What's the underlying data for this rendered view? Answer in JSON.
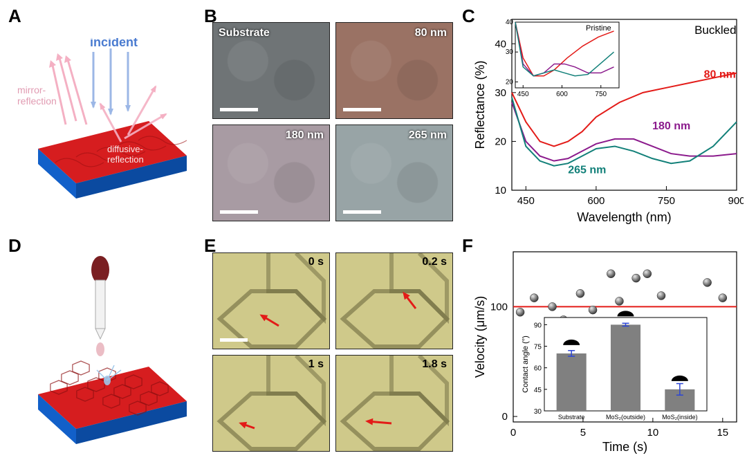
{
  "panels": {
    "A": {
      "label": "A"
    },
    "B": {
      "label": "B"
    },
    "C": {
      "label": "C"
    },
    "D": {
      "label": "D"
    },
    "E": {
      "label": "E"
    },
    "F": {
      "label": "F"
    }
  },
  "panelA": {
    "text_incident": "incident",
    "text_mirror": "mirror-\nreflection",
    "text_diffuse": "diffusive-\nreflection",
    "surface_color": "#d61d1f",
    "side_color_front": "#1260c9",
    "side_color_right": "#0b4aa0",
    "incident_color": "#9cb7e6",
    "mirror_color": "#f4b0c3",
    "diffuse_color": "#f4b0c3",
    "label_color_incident": "#4a7bd0",
    "label_color_mirror": "#e19bb2",
    "label_color_diffuse": "#f2d7de"
  },
  "panelB": {
    "tiles": [
      {
        "label": "Substrate",
        "bg": "#6f7476",
        "tint": "#6f7476"
      },
      {
        "label": "80 nm",
        "bg": "#9a7264",
        "tint": "#9a7264"
      },
      {
        "label": "180 nm",
        "bg": "#a89ba3",
        "tint": "#a89ba3"
      },
      {
        "label": "265 nm",
        "bg": "#98a4a6",
        "tint": "#98a4a6"
      }
    ],
    "scalebar_color": "#ffffff"
  },
  "panelC": {
    "type": "line",
    "title_buckled": "Buckled",
    "title_pristine": "Pristine",
    "xlabel": "Wavelength (nm)",
    "ylabel": "Reflectance (%)",
    "xlim": [
      420,
      900
    ],
    "xticks": [
      450,
      600,
      750,
      900
    ],
    "ylim": [
      10,
      45
    ],
    "yticks": [
      10,
      20,
      30,
      40
    ],
    "axis_color": "#000",
    "axis_w": 1.2,
    "bg": "#ffffff",
    "font_size": 14,
    "series": [
      {
        "name": "80 nm",
        "color": "#e31b18",
        "width": 2,
        "data": [
          [
            420,
            30
          ],
          [
            450,
            24
          ],
          [
            480,
            20
          ],
          [
            510,
            19
          ],
          [
            540,
            20
          ],
          [
            570,
            22
          ],
          [
            600,
            25
          ],
          [
            650,
            28
          ],
          [
            700,
            30
          ],
          [
            750,
            31
          ],
          [
            800,
            32
          ],
          [
            850,
            33
          ],
          [
            900,
            34
          ]
        ]
      },
      {
        "name": "180 nm",
        "color": "#8b1a8c",
        "width": 2,
        "data": [
          [
            420,
            28
          ],
          [
            450,
            20
          ],
          [
            480,
            17
          ],
          [
            510,
            16
          ],
          [
            540,
            16.5
          ],
          [
            570,
            18
          ],
          [
            600,
            19.5
          ],
          [
            640,
            20.5
          ],
          [
            680,
            20.5
          ],
          [
            720,
            19
          ],
          [
            760,
            17.5
          ],
          [
            800,
            17
          ],
          [
            850,
            17
          ],
          [
            900,
            17.5
          ]
        ]
      },
      {
        "name": "265 nm",
        "color": "#128079",
        "width": 2,
        "data": [
          [
            420,
            29
          ],
          [
            450,
            19
          ],
          [
            480,
            16
          ],
          [
            510,
            15
          ],
          [
            540,
            15.5
          ],
          [
            570,
            17
          ],
          [
            600,
            18.5
          ],
          [
            640,
            19
          ],
          [
            680,
            18
          ],
          [
            720,
            16.5
          ],
          [
            760,
            15.5
          ],
          [
            800,
            16
          ],
          [
            850,
            19
          ],
          [
            900,
            24
          ]
        ]
      }
    ],
    "inset": {
      "xlim": [
        420,
        820
      ],
      "xticks": [
        450,
        600,
        750
      ],
      "ylim": [
        18,
        40
      ],
      "yticks": [
        20,
        30,
        40
      ],
      "series": [
        {
          "name": "80 nm",
          "color": "#e31b18",
          "width": 1.5,
          "data": [
            [
              420,
              40
            ],
            [
              450,
              28
            ],
            [
              490,
              22
            ],
            [
              530,
              22
            ],
            [
              570,
              24
            ],
            [
              620,
              28
            ],
            [
              680,
              32
            ],
            [
              740,
              35
            ],
            [
              800,
              37
            ]
          ]
        },
        {
          "name": "180 nm",
          "color": "#8b1a8c",
          "width": 1.5,
          "data": [
            [
              420,
              40
            ],
            [
              450,
              26
            ],
            [
              490,
              22
            ],
            [
              530,
              23
            ],
            [
              570,
              26
            ],
            [
              610,
              26
            ],
            [
              650,
              25
            ],
            [
              700,
              23
            ],
            [
              750,
              23
            ],
            [
              800,
              25
            ]
          ]
        },
        {
          "name": "265 nm",
          "color": "#128079",
          "width": 1.5,
          "data": [
            [
              420,
              40
            ],
            [
              450,
              25
            ],
            [
              490,
              22
            ],
            [
              530,
              23
            ],
            [
              570,
              24
            ],
            [
              610,
              23
            ],
            [
              650,
              22
            ],
            [
              700,
              22.5
            ],
            [
              760,
              27
            ],
            [
              800,
              30
            ]
          ]
        }
      ]
    }
  },
  "panelD": {
    "surface_color": "#d61d1f",
    "side_color_front": "#1260c9",
    "side_color_right": "#0b4aa0",
    "dropper_body": "#f2f2f2",
    "dropper_bulb": "#7a1f22",
    "droplet": "#e9b6bf"
  },
  "panelE": {
    "times": [
      "0 s",
      "0.2 s",
      "1 s",
      "1.8 s"
    ],
    "bg": "#cfc98a",
    "scalebar": true,
    "arrow": "#e31b18"
  },
  "panelF": {
    "type": "scatter",
    "xlabel": "Time (s)",
    "ylabel": "Velocity (μm/s)",
    "xlim": [
      0,
      16
    ],
    "xticks": [
      0,
      5,
      10,
      15
    ],
    "ylim": [
      -5,
      150
    ],
    "yticks": [
      0,
      100
    ],
    "hline": 100,
    "hline_color": "#e31b18",
    "hline_w": 2,
    "points": [
      [
        0.5,
        95
      ],
      [
        1.5,
        108
      ],
      [
        2.8,
        100
      ],
      [
        3.6,
        88
      ],
      [
        4.8,
        112
      ],
      [
        5.7,
        97
      ],
      [
        7.0,
        130
      ],
      [
        7.6,
        105
      ],
      [
        8.8,
        126
      ],
      [
        9.6,
        130
      ],
      [
        10.6,
        110
      ],
      [
        11.8,
        80
      ],
      [
        12.7,
        78
      ],
      [
        13.9,
        122
      ],
      [
        15.0,
        108
      ]
    ],
    "point_fill": "#3d3d3d",
    "point_r": 6,
    "inset": {
      "ylabel": "Contact angle (°)",
      "ylim": [
        30,
        95
      ],
      "yticks": [
        30,
        45,
        60,
        75,
        90
      ],
      "categories": [
        "Substrate",
        "MoS₂(outside)",
        "MoS₂(inside)"
      ],
      "values": [
        70,
        90,
        45
      ],
      "errors": [
        2,
        1,
        4
      ],
      "bar_fill": "#808080",
      "bar_width": 0.55,
      "error_color": "#2b45d6"
    }
  }
}
